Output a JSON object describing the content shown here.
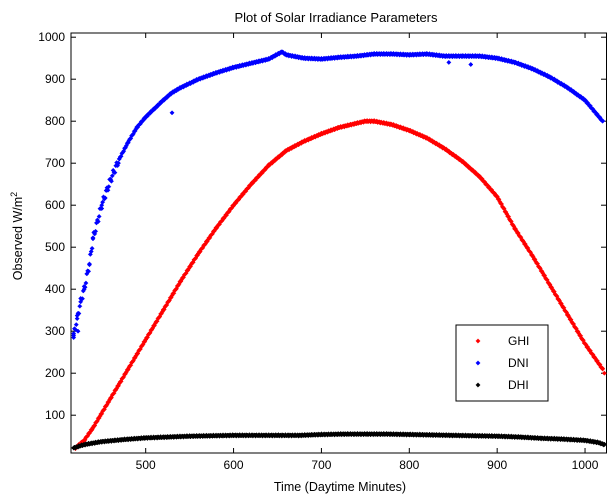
{
  "chart_data": {
    "type": "scatter",
    "title": "Plot of Solar Irradiance Parameters",
    "xlabel": "Time (Daytime Minutes)",
    "ylabel": "Observed W/m",
    "ylabel_superscript": "2",
    "xlim": [
      415,
      1025
    ],
    "ylim": [
      10,
      1010
    ],
    "xticks": [
      500,
      600,
      700,
      800,
      900,
      1000
    ],
    "yticks": [
      100,
      200,
      300,
      400,
      500,
      600,
      700,
      800,
      900,
      1000
    ],
    "grid": false,
    "legend_position": "lower-right",
    "series": [
      {
        "name": "GHI",
        "color": "#ff0000",
        "x": [
          420,
          430,
          440,
          460,
          480,
          500,
          520,
          540,
          560,
          580,
          600,
          620,
          640,
          660,
          680,
          700,
          720,
          740,
          750,
          760,
          780,
          800,
          820,
          840,
          860,
          880,
          900,
          920,
          940,
          960,
          980,
          1000,
          1010,
          1020
        ],
        "y": [
          22,
          40,
          70,
          140,
          210,
          280,
          350,
          420,
          485,
          545,
          600,
          650,
          695,
          730,
          752,
          770,
          785,
          795,
          800,
          800,
          792,
          778,
          760,
          735,
          705,
          668,
          620,
          545,
          480,
          410,
          340,
          270,
          240,
          210
        ]
      },
      {
        "name": "DNI",
        "color": "#0000ff",
        "x": [
          418,
          422,
          426,
          430,
          436,
          440,
          450,
          460,
          470,
          480,
          490,
          500,
          510,
          520,
          530,
          540,
          560,
          580,
          600,
          620,
          640,
          655,
          660,
          680,
          700,
          720,
          740,
          760,
          780,
          800,
          820,
          840,
          860,
          880,
          900,
          920,
          940,
          960,
          980,
          1000,
          1020
        ],
        "y": [
          290,
          330,
          370,
          400,
          460,
          520,
          600,
          660,
          710,
          750,
          785,
          810,
          830,
          850,
          868,
          880,
          900,
          915,
          928,
          938,
          948,
          965,
          958,
          950,
          948,
          952,
          955,
          960,
          960,
          958,
          960,
          955,
          955,
          955,
          950,
          940,
          925,
          905,
          880,
          850,
          800
        ]
      },
      {
        "name": "DHI",
        "color": "#000000",
        "x": [
          418,
          430,
          450,
          475,
          500,
          525,
          550,
          575,
          600,
          625,
          650,
          675,
          700,
          725,
          750,
          775,
          800,
          825,
          850,
          875,
          900,
          925,
          950,
          975,
          1000,
          1015,
          1022
        ],
        "y": [
          22,
          30,
          37,
          42,
          46,
          48,
          50,
          51,
          52,
          52,
          52,
          52,
          54,
          55,
          55,
          55,
          54,
          53,
          52,
          51,
          50,
          48,
          45,
          43,
          40,
          35,
          30
        ]
      }
    ],
    "outliers": {
      "DNI": [
        [
          530,
          820
        ],
        [
          845,
          940
        ],
        [
          870,
          935
        ],
        [
          418,
          285
        ],
        [
          423,
          300
        ]
      ],
      "GHI": [
        [
          1022,
          200
        ]
      ]
    }
  }
}
